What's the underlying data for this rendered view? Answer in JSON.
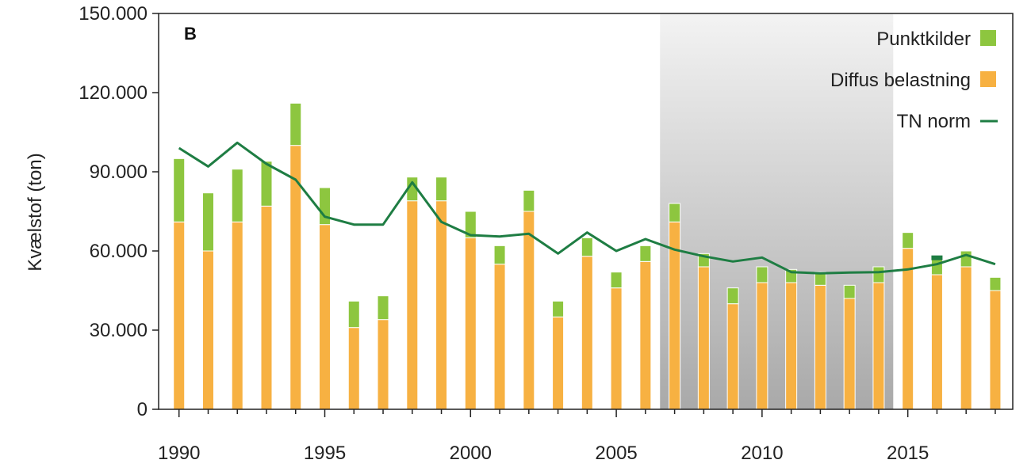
{
  "chart_data": {
    "type": "bar",
    "panel_label": "B",
    "ylabel": "Kvælstof (ton)",
    "xlabel": "",
    "ylim": [
      0,
      150000
    ],
    "y_ticks": [
      0,
      30000,
      60000,
      90000,
      120000,
      150000
    ],
    "y_tick_labels": [
      "0",
      "30.000",
      "60.000",
      "90.000",
      "120.000",
      "150.000"
    ],
    "x_ticks": [
      1990,
      1995,
      2000,
      2005,
      2010,
      2015
    ],
    "x_tick_labels": [
      "1990",
      "1995",
      "2000",
      "2005",
      "2010",
      "2015"
    ],
    "stacked": true,
    "shaded_period": [
      2006.5,
      2014.5
    ],
    "legend_position": "top-right",
    "colors": {
      "punktkilder": "#8dc63f",
      "diffus": "#f7b142",
      "tn_norm": "#1e7d43",
      "highlight_2016": "#1e7d43",
      "shade": "#b8b8b8"
    },
    "legend": [
      {
        "label": "Punktkilder",
        "kind": "box",
        "color_key": "punktkilder"
      },
      {
        "label": "Diffus belastning",
        "kind": "box",
        "color_key": "diffus"
      },
      {
        "label": "TN norm",
        "kind": "line",
        "color_key": "tn_norm"
      }
    ],
    "categories": [
      1990,
      1991,
      1992,
      1993,
      1994,
      1995,
      1996,
      1997,
      1998,
      1999,
      2000,
      2001,
      2002,
      2003,
      2004,
      2005,
      2006,
      2007,
      2008,
      2009,
      2010,
      2011,
      2012,
      2013,
      2014,
      2015,
      2016,
      2017,
      2018
    ],
    "series": [
      {
        "name": "Diffus belastning",
        "values": [
          71000,
          60000,
          71000,
          77000,
          100000,
          70000,
          31000,
          34000,
          79000,
          79000,
          65000,
          55000,
          75000,
          35000,
          58000,
          46000,
          56000,
          71000,
          54000,
          40000,
          48000,
          48000,
          47000,
          42000,
          48000,
          61000,
          51000,
          54000,
          45000
        ]
      },
      {
        "name": "Punktkilder",
        "values": [
          24000,
          22000,
          20000,
          17000,
          16000,
          14000,
          10000,
          9000,
          9000,
          9000,
          10000,
          7000,
          8000,
          6000,
          7000,
          6000,
          6000,
          7000,
          5000,
          6000,
          6000,
          5000,
          5000,
          5000,
          6000,
          6000,
          7000,
          6000,
          5000
        ]
      },
      {
        "name": "TN norm",
        "type": "line",
        "values": [
          99000,
          92000,
          101000,
          93000,
          87000,
          73000,
          70000,
          70000,
          86000,
          71000,
          66000,
          65500,
          66500,
          59000,
          67000,
          60000,
          64500,
          60500,
          58000,
          56000,
          57500,
          52000,
          51500,
          51800,
          52000,
          53000,
          55000,
          58500,
          55000
        ]
      }
    ]
  }
}
